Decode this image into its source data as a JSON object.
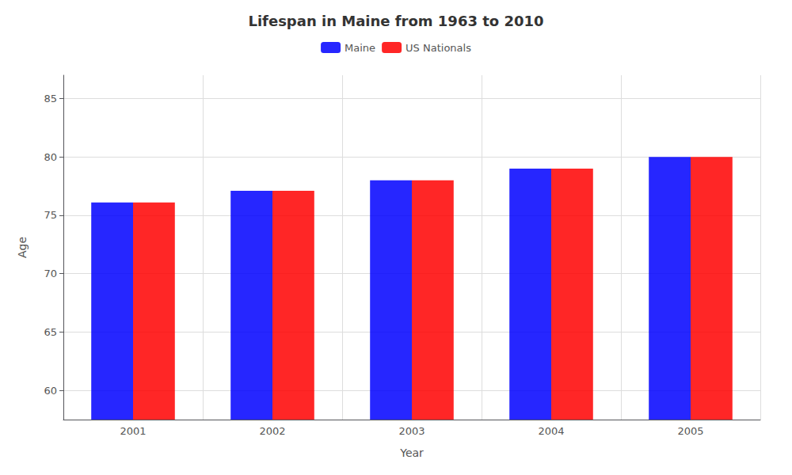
{
  "chart_data": {
    "type": "bar",
    "title": "Lifespan in Maine from 1963 to 2010",
    "x_label": "Year",
    "y_label": "Age",
    "categories": [
      "2001",
      "2002",
      "2003",
      "2004",
      "2005"
    ],
    "series": [
      {
        "name": "Maine",
        "color": "#0000ff",
        "values": [
          76.1,
          77.1,
          78.0,
          79.0,
          80.0
        ]
      },
      {
        "name": "US Nationals",
        "color": "#ff0000",
        "values": [
          76.1,
          77.1,
          78.0,
          79.0,
          80.0
        ]
      }
    ],
    "ylim": [
      57.5,
      87
    ],
    "yticks": [
      60,
      65,
      70,
      75,
      80,
      85
    ],
    "grid": true,
    "legend": "top"
  }
}
